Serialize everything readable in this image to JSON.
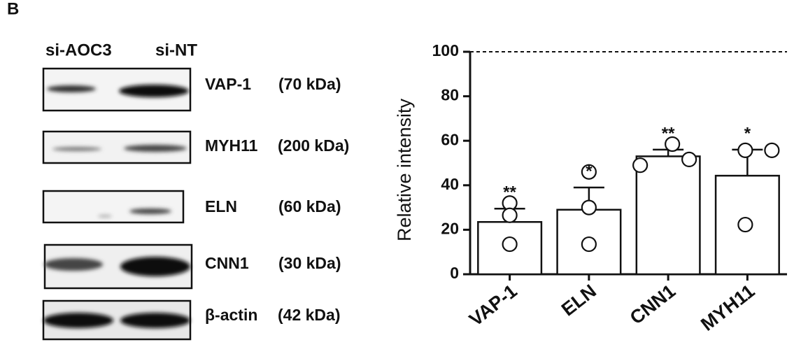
{
  "panel_label": "B",
  "blot": {
    "columns": [
      "si-AOC3",
      "si-NT"
    ],
    "rows": [
      {
        "protein": "VAP-1",
        "weight": "(70 kDa)"
      },
      {
        "protein": "MYH11",
        "weight": "(200 kDa)"
      },
      {
        "protein": "ELN",
        "weight": "(60 kDa)"
      },
      {
        "protein": "CNN1",
        "weight": "(30 kDa)"
      },
      {
        "protein": "β-actin",
        "weight": "(42 kDa)"
      }
    ]
  },
  "chart_data": {
    "type": "bar",
    "y_label": "Relative intensity",
    "categories": [
      "VAP-1",
      "ELN",
      "CNN1",
      "MYH11"
    ],
    "values": [
      23.5,
      29,
      53,
      44.3
    ],
    "errors": [
      6,
      10,
      3,
      11.7
    ],
    "points": [
      [
        32,
        26.5,
        13.5
      ],
      [
        46,
        30,
        13.5
      ],
      [
        49,
        58.5,
        51.6
      ],
      [
        55.7,
        55.7,
        22.3
      ]
    ],
    "annotations": [
      "**",
      "*",
      "**",
      "*"
    ],
    "color": "#ffffff",
    "reference_line": 100,
    "ylim": [
      0,
      100
    ],
    "yticks": [
      0,
      20,
      40,
      60,
      80,
      100
    ]
  }
}
